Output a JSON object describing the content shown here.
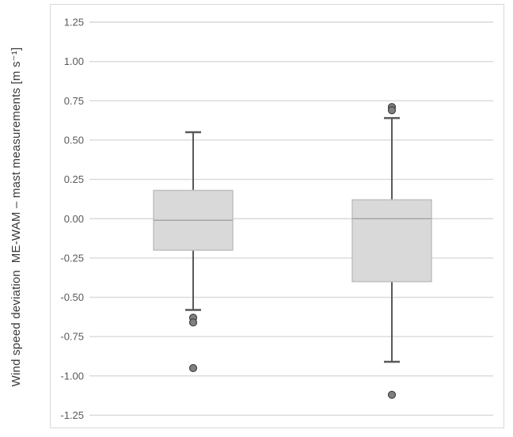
{
  "chart_data": {
    "type": "boxplot",
    "title": "",
    "ylabel": "Wind speed deviation  ME-WAM – mast measurements [m s⁻¹]",
    "ylim": [
      -1.25,
      1.25
    ],
    "ytick_step": 0.25,
    "yticks": [
      "1.25",
      "1.00",
      "0.75",
      "0.50",
      "0.25",
      "0.00",
      "-0.25",
      "-0.50",
      "-0.75",
      "-1.00",
      "-1.25"
    ],
    "grid": true,
    "x_labels_visible": false,
    "series": [
      {
        "whisker_high": 0.55,
        "q3": 0.18,
        "median": -0.01,
        "q1": -0.2,
        "whisker_low": -0.58,
        "outliers": [
          -0.63,
          -0.66,
          -0.95
        ]
      },
      {
        "whisker_high": 0.64,
        "q3": 0.12,
        "median": 0.0,
        "q1": -0.4,
        "whisker_low": -0.91,
        "outliers": [
          0.71,
          0.69,
          -1.12
        ]
      }
    ],
    "colors": {
      "box_fill": "#d9d9d9",
      "box_border": "#bfbfbf",
      "median_line": "#a6a6a6",
      "whisker": "#595959",
      "outlier_fill": "#808080",
      "outlier_border": "#404040",
      "gridline": "#d9d9d9",
      "chart_border": "#d9d9d9",
      "tick_label": "#595959",
      "axis_title": "#3b3b3b"
    }
  }
}
